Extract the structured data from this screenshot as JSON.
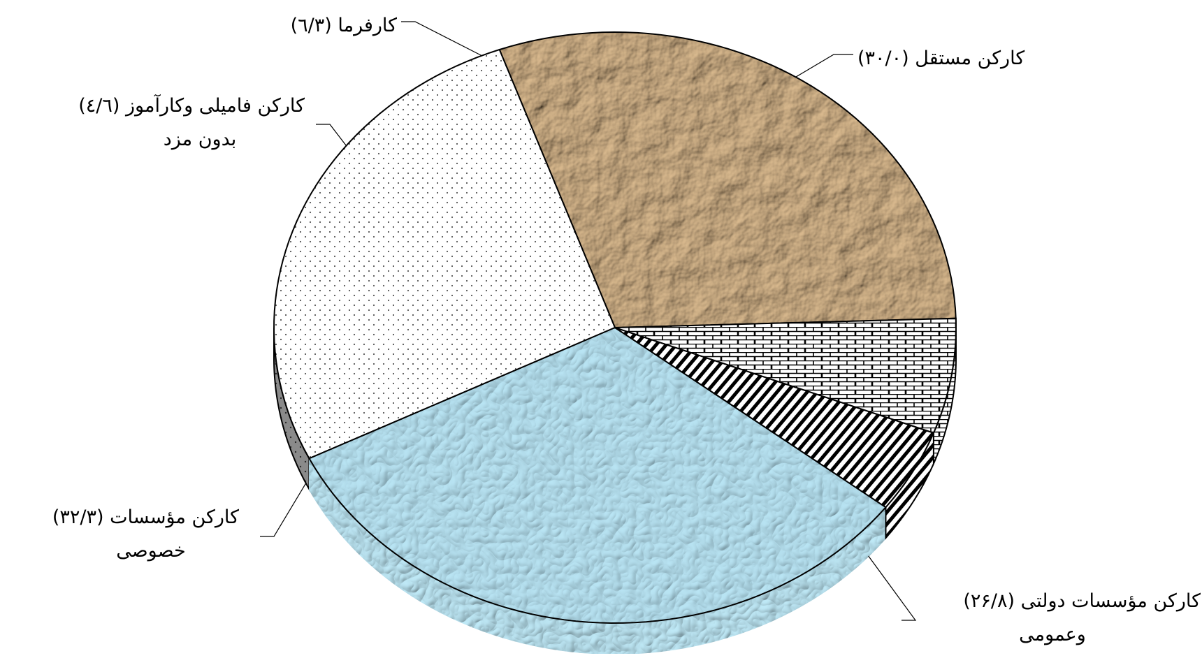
{
  "chart_data": {
    "type": "pie",
    "style": "3d",
    "unit": "percent",
    "slices": [
      {
        "label_line1": "(۳۰/۰) کارکن مستقل",
        "label_line2": "",
        "value": 30.0,
        "fill": "crumpled-paper",
        "color": "#b08a60"
      },
      {
        "label_line1": "(۲۶/۸) کارکن مؤسسات دولتی",
        "label_line2": "وعمومی",
        "value": 26.8,
        "fill": "dots",
        "color": "#ffffff"
      },
      {
        "label_line1": "(۳۲/۳) کارکن مؤسسات",
        "label_line2": "خصوصی",
        "value": 32.3,
        "fill": "water-drops",
        "color": "#a8d8ec"
      },
      {
        "label_line1": "(٤/٦) کارکن فامیلی وکارآموز",
        "label_line2": "بدون مزد",
        "value": 4.6,
        "fill": "diagonal-stripes",
        "color": "#ffffff"
      },
      {
        "label_line1": "(٦/۳) کارفرما",
        "label_line2": "",
        "value": 6.3,
        "fill": "bricks",
        "color": "#ffffff"
      }
    ]
  }
}
